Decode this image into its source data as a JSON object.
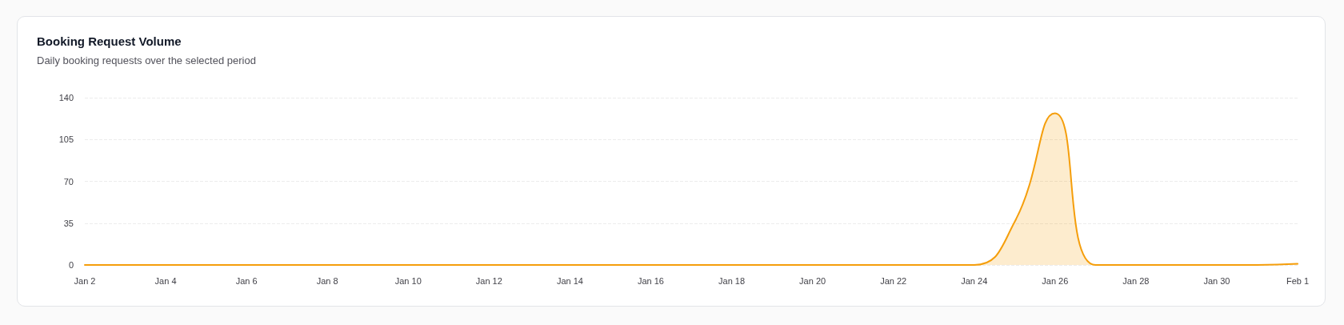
{
  "chart_data": {
    "type": "area",
    "title": "Booking Request Volume",
    "subtitle": "Daily booking requests over the selected period",
    "categories": [
      "Jan 2",
      null,
      "Jan 4",
      null,
      "Jan 6",
      null,
      "Jan 8",
      null,
      "Jan 10",
      null,
      "Jan 12",
      null,
      "Jan 14",
      null,
      "Jan 16",
      null,
      "Jan 18",
      null,
      "Jan 20",
      null,
      "Jan 22",
      null,
      "Jan 24",
      null,
      "Jan 26",
      null,
      "Jan 28",
      null,
      "Jan 30",
      null,
      "Feb 1"
    ],
    "series": [
      {
        "color": "#f59e0b",
        "values": [
          0,
          0,
          0,
          0,
          0,
          0,
          0,
          0,
          0,
          0,
          0,
          0,
          0,
          0,
          0,
          0,
          0,
          0,
          0,
          0,
          0,
          0,
          0,
          36,
          127,
          0,
          0,
          0,
          0,
          0,
          1
        ]
      }
    ],
    "ylim": [
      0,
      140
    ],
    "yticks": [
      0,
      35,
      70,
      105,
      140
    ],
    "grid": "y",
    "marker": "none",
    "line_style": "solid"
  }
}
